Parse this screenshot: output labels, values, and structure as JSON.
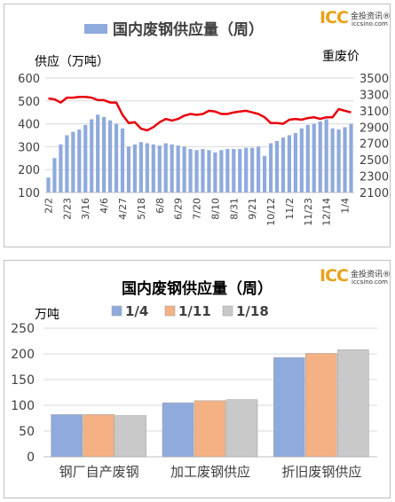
{
  "logo": {
    "brand": "ICC",
    "cn": "金投资讯®",
    "url": "iccsino.com"
  },
  "chart_data": [
    {
      "type": "bar",
      "title": "国内废钢供应量（周）",
      "legend": "国内废钢供应量（周）",
      "ylabel_left": "供应（万吨）",
      "ylabel_right": "重废价",
      "ylim_left": [
        100,
        600
      ],
      "yticks_left": [
        100,
        200,
        300,
        400,
        500,
        600
      ],
      "ylim_right": [
        2100,
        3500
      ],
      "yticks_right": [
        2100,
        2300,
        2500,
        2700,
        2900,
        3100,
        3300,
        3500
      ],
      "x_tick_labels": [
        "2/2",
        "2/23",
        "3/16",
        "4/6",
        "4/27",
        "5/18",
        "6/8",
        "6/29",
        "7/20",
        "8/10",
        "8/31",
        "9/21",
        "10/12",
        "11/2",
        "11/23",
        "12/14",
        "1/4"
      ],
      "bars": [
        165,
        250,
        310,
        350,
        365,
        375,
        395,
        420,
        440,
        430,
        415,
        400,
        380,
        300,
        310,
        320,
        315,
        310,
        305,
        315,
        310,
        305,
        300,
        290,
        285,
        290,
        285,
        275,
        285,
        290,
        290,
        290,
        295,
        295,
        300,
        260,
        315,
        325,
        340,
        350,
        360,
        380,
        395,
        400,
        410,
        420,
        380,
        375,
        385,
        400
      ],
      "line": [
        3250,
        3240,
        3200,
        3260,
        3260,
        3270,
        3270,
        3260,
        3230,
        3230,
        3200,
        3200,
        3050,
        2950,
        2960,
        2880,
        2860,
        2900,
        2960,
        3000,
        2980,
        3000,
        3040,
        3060,
        3050,
        3060,
        3100,
        3090,
        3060,
        3060,
        3080,
        3090,
        3100,
        3080,
        3060,
        3020,
        2950,
        2950,
        2940,
        2990,
        3000,
        2990,
        3010,
        3020,
        3000,
        3020,
        3020,
        3120,
        3100,
        3080
      ],
      "bar_color": "#8faadc",
      "line_color": "#e8000b",
      "grid": true,
      "legend_position": "top"
    },
    {
      "type": "bar",
      "title": "国内废钢供应量（周）",
      "ylabel": "万吨",
      "ylim": [
        0,
        250
      ],
      "yticks": [
        0,
        50,
        100,
        150,
        200,
        250
      ],
      "categories": [
        "钢厂自产废钢",
        "加工废钢供应",
        "折旧废钢供应"
      ],
      "series": [
        {
          "name": "1/4",
          "values": [
            82,
            105,
            193
          ],
          "color": "#8faadc"
        },
        {
          "name": "1/11",
          "values": [
            82,
            109,
            201
          ],
          "color": "#f4b183"
        },
        {
          "name": "1/18",
          "values": [
            80,
            111,
            208
          ],
          "color": "#c9c9c9"
        }
      ],
      "grid": true,
      "legend_position": "top"
    }
  ]
}
